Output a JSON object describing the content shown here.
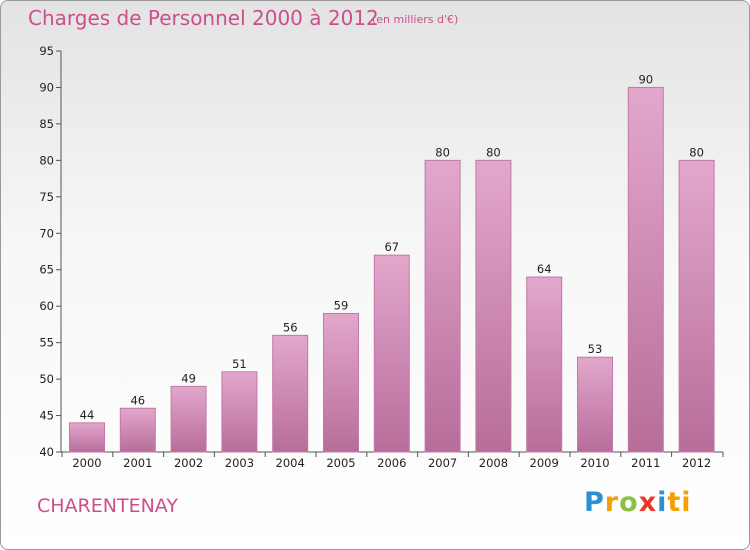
{
  "header": {
    "title": "Charges de Personnel 2000 à 2012",
    "subtitle": "(en milliers d'€)"
  },
  "footer": {
    "city": "CHARENTENAY",
    "logo_letters": [
      "P",
      "r",
      "o",
      "x",
      "i",
      "ti"
    ]
  },
  "colors": {
    "title": "#cc4f8b",
    "bar_top": "#e3a7cc",
    "bar_bottom": "#b76d9a",
    "bar_edge": "#c07aa5"
  },
  "chart_data": {
    "type": "bar",
    "title": "Charges de Personnel 2000 à 2012",
    "subtitle": "(en milliers d'€)",
    "categories": [
      "2000",
      "2001",
      "2002",
      "2003",
      "2004",
      "2005",
      "2006",
      "2007",
      "2008",
      "2009",
      "2010",
      "2011",
      "2012"
    ],
    "values": [
      44,
      46,
      49,
      51,
      56,
      59,
      67,
      80,
      80,
      64,
      53,
      90,
      80
    ],
    "ylim": [
      40,
      95
    ],
    "yticks": [
      40,
      45,
      50,
      55,
      60,
      65,
      70,
      75,
      80,
      85,
      90,
      95
    ],
    "grid": false,
    "data_labels": true
  }
}
